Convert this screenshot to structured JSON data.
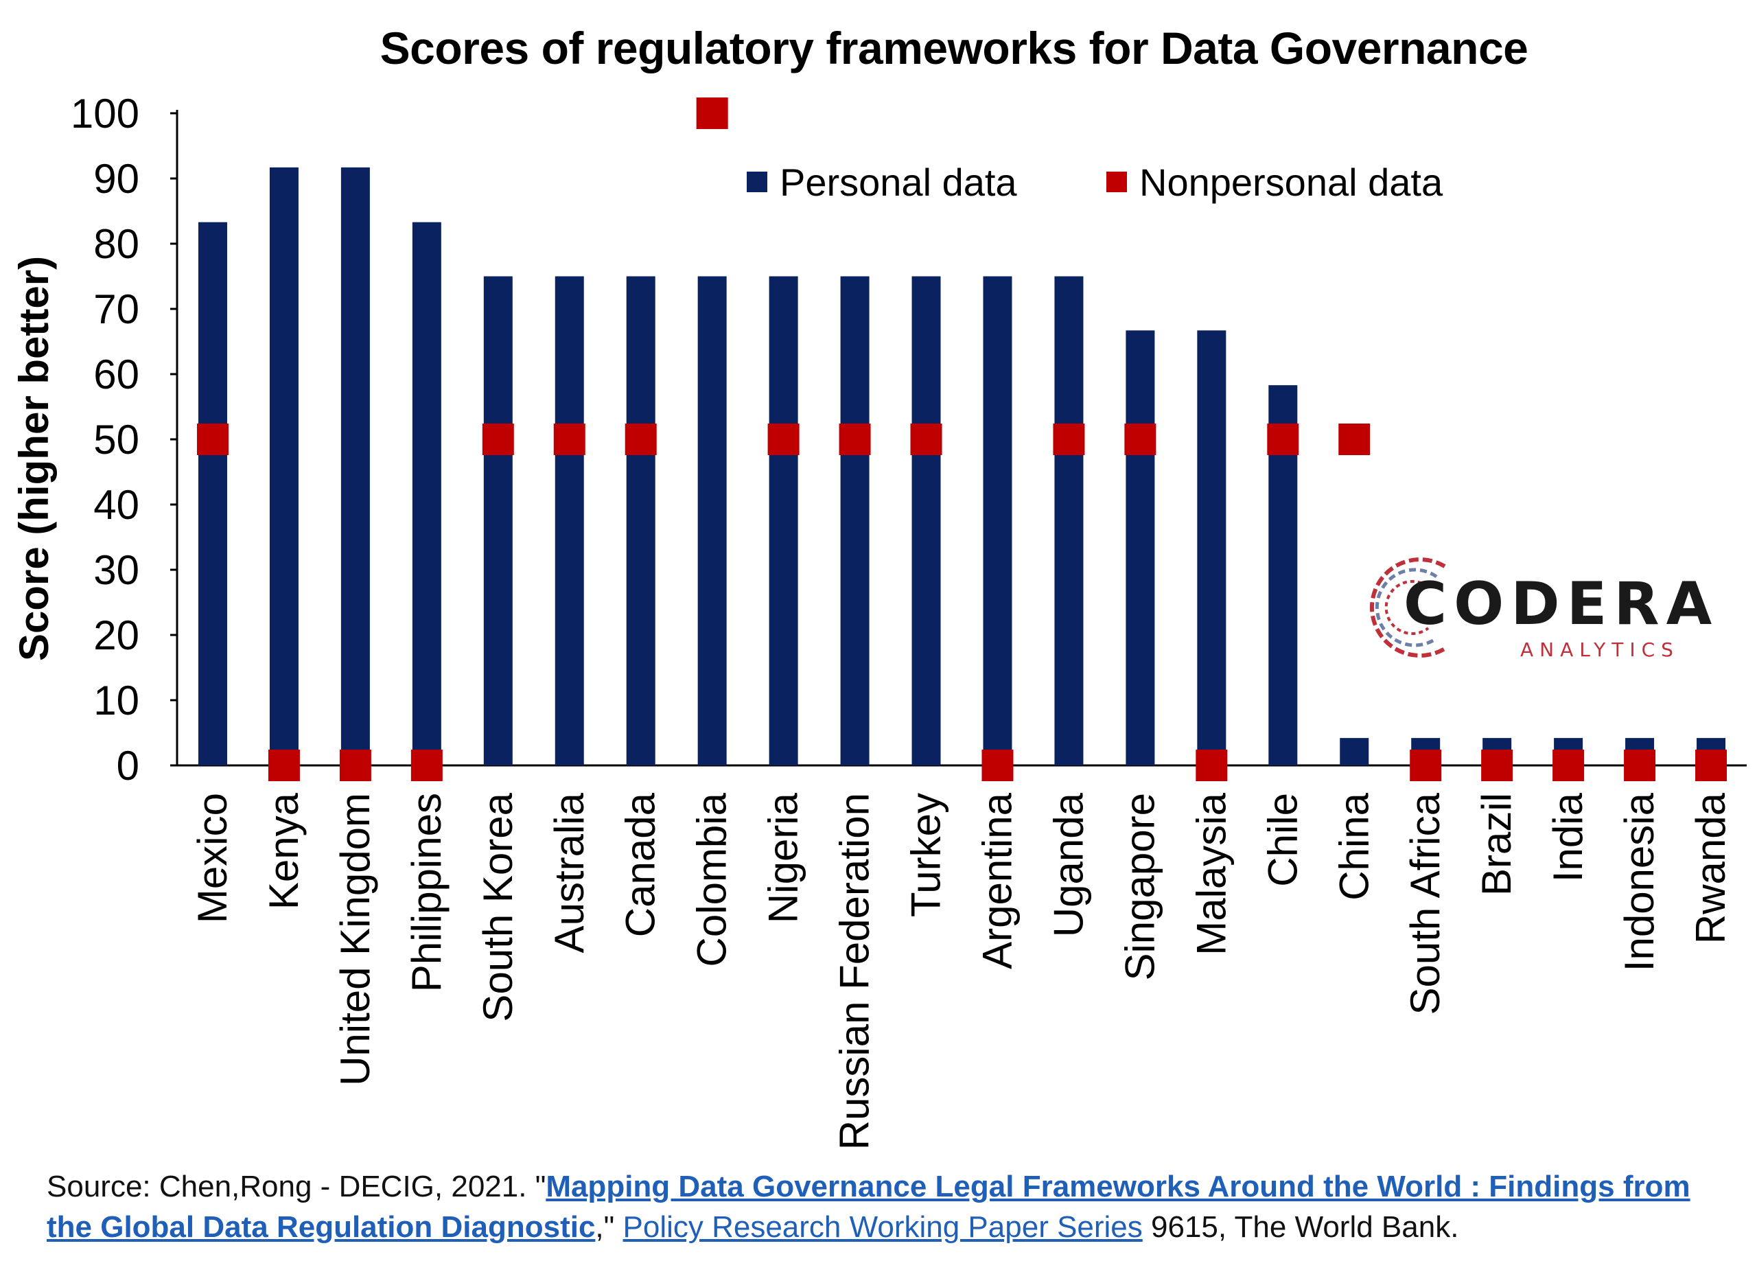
{
  "chart_data": {
    "type": "bar",
    "title": "Scores of regulatory frameworks for Data Governance",
    "xlabel": "",
    "ylabel": "Score (higher better)",
    "ylim": [
      0,
      100
    ],
    "yticks": [
      0,
      10,
      20,
      30,
      40,
      50,
      60,
      70,
      80,
      90,
      100
    ],
    "legend_position": "top",
    "categories": [
      "Mexico",
      "Kenya",
      "United Kingdom",
      "Philippines",
      "South Korea",
      "Australia",
      "Canada",
      "Colombia",
      "Nigeria",
      "Russian Federation",
      "Turkey",
      "Argentina",
      "Uganda",
      "Singapore",
      "Malaysia",
      "Chile",
      "China",
      "South Africa",
      "Brazil",
      "India",
      "Indonesia",
      "Rwanda"
    ],
    "series": [
      {
        "name": "Personal data",
        "kind": "bar",
        "color": "#0b2260",
        "values": [
          83.3,
          91.7,
          91.7,
          83.3,
          75,
          75,
          75,
          75,
          75,
          75,
          75,
          75,
          75,
          66.7,
          66.7,
          58.3,
          4.2,
          4.2,
          4.2,
          4.2,
          4.2,
          4.2
        ]
      },
      {
        "name": "Nonpersonal data",
        "kind": "marker",
        "color": "#c00000",
        "values": [
          50,
          0,
          0,
          0,
          50,
          50,
          50,
          100,
          50,
          50,
          50,
          0,
          50,
          50,
          0,
          50,
          50,
          0,
          0,
          0,
          0,
          0
        ]
      }
    ]
  },
  "logo": {
    "name": "CODERA",
    "sub": "ANALYTICS"
  },
  "source": {
    "prefix": "Source: Chen,Rong - DECIG, 2021. \"",
    "link1": "Mapping Data Governance Legal Frameworks Around the World : Findings from the Global Data Regulation Diagnostic",
    "middle": ",\" ",
    "link2": "Policy Research Working Paper Series",
    "suffix": " 9615, The World Bank."
  }
}
